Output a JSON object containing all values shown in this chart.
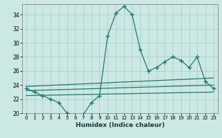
{
  "xlabel": "Humidex (Indice chaleur)",
  "x": [
    0,
    1,
    2,
    3,
    4,
    5,
    6,
    7,
    8,
    9,
    10,
    11,
    12,
    13,
    14,
    15,
    16,
    17,
    18,
    19,
    20,
    21,
    22,
    23
  ],
  "line1": [
    23.5,
    23.0,
    22.5,
    22.0,
    21.5,
    20.0,
    19.5,
    19.8,
    21.5,
    22.5,
    31.0,
    34.2,
    35.2,
    34.0,
    29.0,
    26.0,
    26.5,
    27.3,
    28.0,
    27.5,
    26.5,
    28.0,
    24.5,
    23.5
  ],
  "trend_lines": [
    {
      "x0": 0,
      "y0": 22.5,
      "x1": 23,
      "y1": 23.0
    },
    {
      "x0": 0,
      "y0": 23.2,
      "x1": 23,
      "y1": 24.0
    },
    {
      "x0": 0,
      "y0": 23.8,
      "x1": 23,
      "y1": 25.0
    }
  ],
  "ylim": [
    20,
    35
  ],
  "yticks": [
    20,
    22,
    24,
    26,
    28,
    30,
    32,
    34
  ],
  "xticks": [
    0,
    1,
    2,
    3,
    4,
    5,
    6,
    7,
    8,
    9,
    10,
    11,
    12,
    13,
    14,
    15,
    16,
    17,
    18,
    19,
    20,
    21,
    22,
    23
  ],
  "line_color": "#1a7a6e",
  "bg_color": "#cce8e4",
  "grid_color": "#aacfcb",
  "spine_color": "#888888"
}
